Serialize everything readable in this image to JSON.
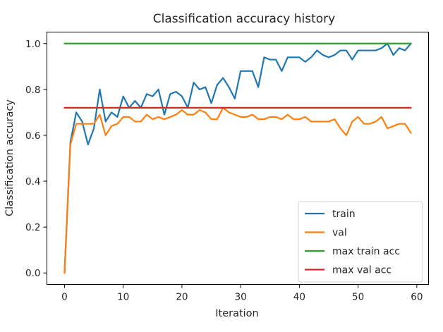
{
  "chart_data": {
    "type": "line",
    "title": "Classification accuracy history",
    "xlabel": "Iteration",
    "ylabel": "Classification accuracy",
    "xlim": [
      -3,
      62
    ],
    "ylim": [
      -0.05,
      1.05
    ],
    "xticks": [
      0,
      10,
      20,
      30,
      40,
      50,
      60
    ],
    "yticks": [
      0.0,
      0.2,
      0.4,
      0.6,
      0.8,
      1.0
    ],
    "xtick_labels": [
      "0",
      "10",
      "20",
      "30",
      "40",
      "50",
      "60"
    ],
    "ytick_labels": [
      "0.0",
      "0.2",
      "0.4",
      "0.6",
      "0.8",
      "1.0"
    ],
    "grid": false,
    "legend_position": "lower-right",
    "series": [
      {
        "name": "train",
        "color": "#1f77b4",
        "x": [
          0,
          1,
          2,
          3,
          4,
          5,
          6,
          7,
          8,
          9,
          10,
          11,
          12,
          13,
          14,
          15,
          16,
          17,
          18,
          19,
          20,
          21,
          22,
          23,
          24,
          25,
          26,
          27,
          28,
          29,
          30,
          31,
          32,
          33,
          34,
          35,
          36,
          37,
          38,
          39,
          40,
          41,
          42,
          43,
          44,
          45,
          46,
          47,
          48,
          49,
          50,
          51,
          52,
          53,
          54,
          55,
          56,
          57,
          58,
          59
        ],
        "y": [
          0.0,
          0.57,
          0.7,
          0.66,
          0.56,
          0.63,
          0.8,
          0.66,
          0.7,
          0.68,
          0.77,
          0.72,
          0.75,
          0.72,
          0.78,
          0.77,
          0.8,
          0.69,
          0.78,
          0.79,
          0.77,
          0.72,
          0.83,
          0.8,
          0.81,
          0.74,
          0.82,
          0.85,
          0.81,
          0.76,
          0.88,
          0.88,
          0.88,
          0.81,
          0.94,
          0.93,
          0.93,
          0.88,
          0.94,
          0.94,
          0.94,
          0.92,
          0.94,
          0.97,
          0.95,
          0.94,
          0.95,
          0.97,
          0.97,
          0.93,
          0.97,
          0.97,
          0.97,
          0.97,
          0.98,
          1.0,
          0.95,
          0.98,
          0.97,
          1.0
        ]
      },
      {
        "name": "val",
        "color": "#ff7f0e",
        "x": [
          0,
          1,
          2,
          3,
          4,
          5,
          6,
          7,
          8,
          9,
          10,
          11,
          12,
          13,
          14,
          15,
          16,
          17,
          18,
          19,
          20,
          21,
          22,
          23,
          24,
          25,
          26,
          27,
          28,
          29,
          30,
          31,
          32,
          33,
          34,
          35,
          36,
          37,
          38,
          39,
          40,
          41,
          42,
          43,
          44,
          45,
          46,
          47,
          48,
          49,
          50,
          51,
          52,
          53,
          54,
          55,
          56,
          57,
          58,
          59
        ],
        "y": [
          0.0,
          0.56,
          0.65,
          0.65,
          0.65,
          0.65,
          0.69,
          0.6,
          0.64,
          0.65,
          0.68,
          0.68,
          0.66,
          0.66,
          0.69,
          0.67,
          0.68,
          0.67,
          0.68,
          0.69,
          0.71,
          0.69,
          0.69,
          0.71,
          0.7,
          0.67,
          0.67,
          0.72,
          0.7,
          0.69,
          0.68,
          0.68,
          0.69,
          0.67,
          0.67,
          0.68,
          0.68,
          0.67,
          0.69,
          0.67,
          0.67,
          0.68,
          0.66,
          0.66,
          0.66,
          0.66,
          0.67,
          0.63,
          0.6,
          0.66,
          0.68,
          0.65,
          0.65,
          0.66,
          0.68,
          0.63,
          0.64,
          0.65,
          0.65,
          0.61
        ]
      },
      {
        "name": "max train acc",
        "color": "#2ca02c",
        "x": [
          0,
          59
        ],
        "y": [
          1.0,
          1.0
        ]
      },
      {
        "name": "max val acc",
        "color": "#d62728",
        "x": [
          0,
          59
        ],
        "y": [
          0.72,
          0.72
        ]
      }
    ]
  }
}
